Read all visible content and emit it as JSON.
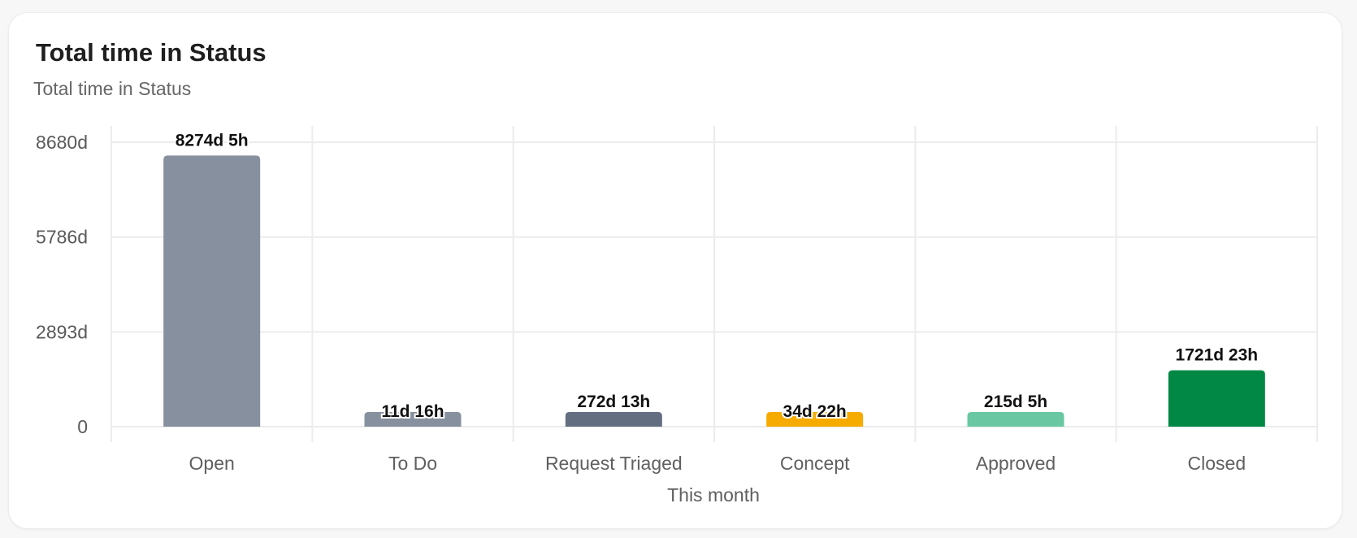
{
  "card": {
    "title": "Total time in Status",
    "subtitle": "Total time in Status"
  },
  "chart_data": {
    "type": "bar",
    "title": "Total time in Status",
    "subtitle": "Total time in Status",
    "xlabel": "This month",
    "ylabel": "",
    "categories": [
      "Open",
      "To Do",
      "Request Triaged",
      "Concept",
      "Approved",
      "Closed"
    ],
    "values": [
      8274.21,
      11.67,
      272.54,
      34.92,
      215.21,
      1721.96
    ],
    "value_labels": [
      "8274d 5h",
      "11d 16h",
      "272d 13h",
      "34d 22h",
      "215d 5h",
      "1721d 23h"
    ],
    "colors": [
      "#87909e",
      "#87909e",
      "#636f80",
      "#f6ab00",
      "#69c7a1",
      "#008844"
    ],
    "ylim": [
      0,
      8680
    ],
    "yticks": [
      0,
      2893,
      5786,
      8680
    ],
    "ytick_labels": [
      "0",
      "2893d",
      "5786d",
      "8680d"
    ],
    "grid": true,
    "legend": "none"
  }
}
